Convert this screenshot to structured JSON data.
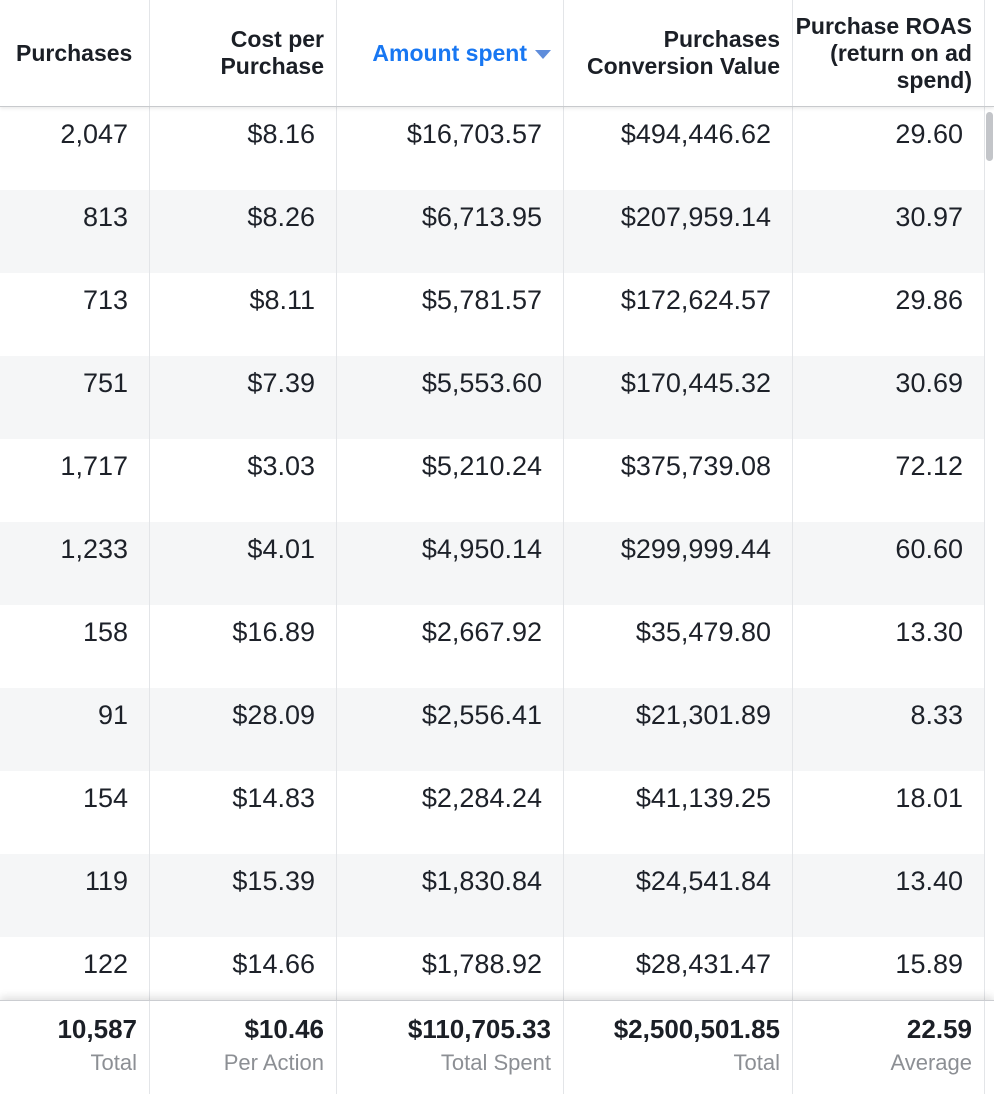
{
  "table": {
    "columns": [
      {
        "id": "purchases",
        "label": "Purchases",
        "sorted": false
      },
      {
        "id": "cost-per-purchase",
        "label": "Cost per Purchase",
        "sorted": false
      },
      {
        "id": "amount-spent",
        "label": "Amount spent",
        "sorted": true
      },
      {
        "id": "purchases-conversion-value",
        "label": "Purchases Conversion Value",
        "sorted": false
      },
      {
        "id": "purchase-roas",
        "label": "Purchase ROAS (return on ad spend)",
        "sorted": false
      }
    ],
    "sort": {
      "column": "amount-spent",
      "direction": "descending",
      "icon": "sort-descending-caret-icon"
    },
    "rows": [
      [
        "2,047",
        "$8.16",
        "$16,703.57",
        "$494,446.62",
        "29.60"
      ],
      [
        "813",
        "$8.26",
        "$6,713.95",
        "$207,959.14",
        "30.97"
      ],
      [
        "713",
        "$8.11",
        "$5,781.57",
        "$172,624.57",
        "29.86"
      ],
      [
        "751",
        "$7.39",
        "$5,553.60",
        "$170,445.32",
        "30.69"
      ],
      [
        "1,717",
        "$3.03",
        "$5,210.24",
        "$375,739.08",
        "72.12"
      ],
      [
        "1,233",
        "$4.01",
        "$4,950.14",
        "$299,999.44",
        "60.60"
      ],
      [
        "158",
        "$16.89",
        "$2,667.92",
        "$35,479.80",
        "13.30"
      ],
      [
        "91",
        "$28.09",
        "$2,556.41",
        "$21,301.89",
        "8.33"
      ],
      [
        "154",
        "$14.83",
        "$2,284.24",
        "$41,139.25",
        "18.01"
      ],
      [
        "119",
        "$15.39",
        "$1,830.84",
        "$24,541.84",
        "13.40"
      ],
      [
        "122",
        "$14.66",
        "$1,788.92",
        "$28,431.47",
        "15.89"
      ]
    ],
    "footer": [
      {
        "value": "10,587",
        "label": "Total"
      },
      {
        "value": "$10.46",
        "label": "Per Action"
      },
      {
        "value": "$110,705.33",
        "label": "Total Spent"
      },
      {
        "value": "$2,500,501.85",
        "label": "Total"
      },
      {
        "value": "22.59",
        "label": "Average"
      }
    ],
    "colors": {
      "sorted_header_text": "#1877f2",
      "sort_arrow": "#5f8ddb",
      "alt_row_background": "#f5f6f7",
      "column_divider": "#e3e5e8",
      "header_border": "#c8cacd",
      "footer_label_text": "#8c8f94",
      "body_text": "#1d2129",
      "scrollbar_thumb": "#c3c5c9"
    }
  }
}
